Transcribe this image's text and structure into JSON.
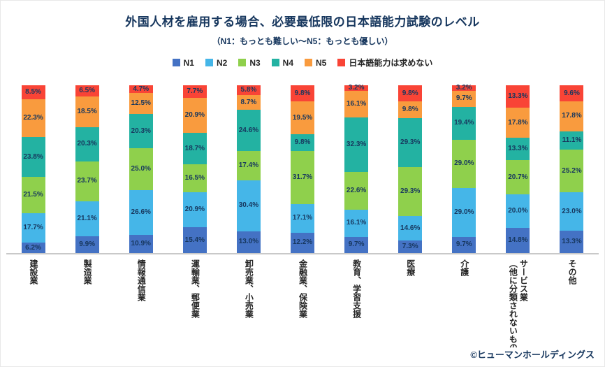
{
  "title": "外国人材を雇用する場合、必要最低限の日本語能力試験のレベル",
  "subtitle": "（N1：もっとも難しい～N5：もっとも優しい）",
  "copyright": "©ヒューマンホールディングス",
  "colors": {
    "title_text": "#17375E",
    "value_label_text": "#17375E",
    "axis_line": "#C9C9C9",
    "n1": "#4472C4",
    "n2": "#45B6E8",
    "n3": "#8FD04C",
    "n4": "#23B2A2",
    "n5": "#F99B3E",
    "not_required": "#F94436"
  },
  "chart_data": {
    "type": "bar",
    "stacked": true,
    "unit": "%",
    "ylim": [
      0,
      100
    ],
    "grid": false,
    "legend_position": "top",
    "categories": [
      "建設業",
      "製造業",
      "情報通信業",
      "運輸業、郵便業",
      "卸売業、小売業",
      "金融業、保険業",
      "教育、学習支援",
      "医療",
      "介護",
      "サービス業\n（他に分類されないもの）",
      "その他"
    ],
    "series": [
      {
        "name": "N1",
        "color": "#4472C4",
        "values": [
          6.2,
          9.9,
          10.9,
          15.4,
          13.0,
          12.2,
          9.7,
          7.3,
          9.7,
          14.8,
          13.3
        ]
      },
      {
        "name": "N2",
        "color": "#45B6E8",
        "values": [
          17.7,
          21.1,
          26.6,
          20.9,
          30.4,
          17.1,
          16.1,
          14.6,
          29.0,
          20.0,
          23.0
        ]
      },
      {
        "name": "N3",
        "color": "#8FD04C",
        "values": [
          21.5,
          23.7,
          25.0,
          16.5,
          17.4,
          31.7,
          22.6,
          29.3,
          29.0,
          20.7,
          25.2
        ]
      },
      {
        "name": "N4",
        "color": "#23B2A2",
        "values": [
          23.8,
          20.3,
          20.3,
          18.7,
          24.6,
          9.8,
          32.3,
          29.3,
          19.4,
          13.3,
          11.1
        ]
      },
      {
        "name": "N5",
        "color": "#F99B3E",
        "values": [
          22.3,
          18.5,
          12.5,
          20.9,
          8.7,
          19.5,
          16.1,
          9.8,
          9.7,
          17.8,
          17.8
        ]
      },
      {
        "name": "日本語能力は求めない",
        "color": "#F94436",
        "values": [
          8.5,
          6.5,
          4.7,
          7.7,
          5.8,
          9.8,
          3.2,
          9.8,
          3.2,
          13.3,
          9.6
        ]
      }
    ]
  }
}
